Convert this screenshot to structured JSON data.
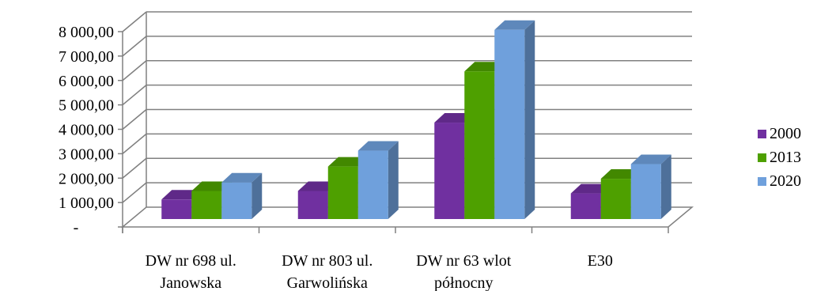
{
  "chart_data": {
    "type": "bar",
    "title": "",
    "xlabel": "",
    "ylabel": "",
    "ylim": [
      0,
      8000
    ],
    "y_ticks": [
      "-",
      "1 000,00",
      "2 000,00",
      "3 000,00",
      "4 000,00",
      "5 000,00",
      "6 000,00",
      "7 000,00",
      "8 000,00"
    ],
    "categories": [
      [
        "DW nr 698 ul.",
        "Janowska"
      ],
      [
        "DW nr 803 ul.",
        "Garwolińska"
      ],
      [
        "DW nr 63 wlot",
        "północny"
      ],
      [
        "E30"
      ]
    ],
    "series": [
      {
        "name": "2000",
        "color": "#7030A0",
        "values": [
          800,
          1150,
          3950,
          1050
        ]
      },
      {
        "name": "2013",
        "color": "#4EA000",
        "values": [
          1150,
          2150,
          6050,
          1650
        ]
      },
      {
        "name": "2020",
        "color": "#6FA0DC",
        "values": [
          1500,
          2800,
          7750,
          2250
        ]
      }
    ],
    "grid": true,
    "legend": "right",
    "style": "3d-clustered-column"
  }
}
